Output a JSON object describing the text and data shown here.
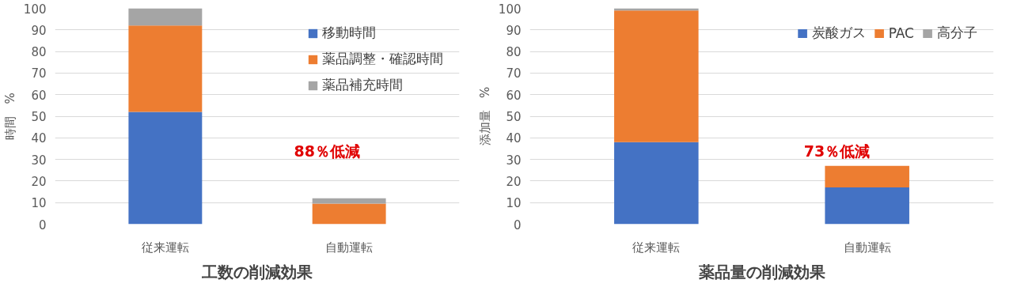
{
  "chart_data": [
    {
      "type": "bar",
      "stacked": true,
      "title": "工数の削減効果",
      "ylabel": "時間　%",
      "categories": [
        "従来運転",
        "自動運転"
      ],
      "series": [
        {
          "name": "移動時間",
          "color": "#4472c4",
          "values": [
            52,
            0
          ]
        },
        {
          "name": "薬品調整・確認時間",
          "color": "#ed7d31",
          "values": [
            40,
            9.5
          ]
        },
        {
          "name": "薬品補充時間",
          "color": "#a5a5a5",
          "values": [
            8,
            2.5
          ]
        }
      ],
      "ylim": [
        0,
        100
      ],
      "yticks": [
        0,
        10,
        20,
        30,
        40,
        50,
        60,
        70,
        80,
        90,
        100
      ],
      "grid": "y",
      "legend": "right",
      "annotations": [
        "88％低減"
      ]
    },
    {
      "type": "bar",
      "stacked": true,
      "title": "薬品量の削減効果",
      "ylabel": "添加量　%",
      "categories": [
        "従来運転",
        "自動運転"
      ],
      "series": [
        {
          "name": "炭酸ガス",
          "color": "#4472c4",
          "values": [
            38,
            17
          ]
        },
        {
          "name": "PAC",
          "color": "#ed7d31",
          "values": [
            61,
            10
          ]
        },
        {
          "name": "高分子",
          "color": "#a5a5a5",
          "values": [
            1,
            0
          ]
        }
      ],
      "ylim": [
        0,
        100
      ],
      "yticks": [
        0,
        10,
        20,
        30,
        40,
        50,
        60,
        70,
        80,
        90,
        100
      ],
      "grid": "y",
      "legend": "top right",
      "annotations": [
        "73％低減"
      ]
    }
  ]
}
